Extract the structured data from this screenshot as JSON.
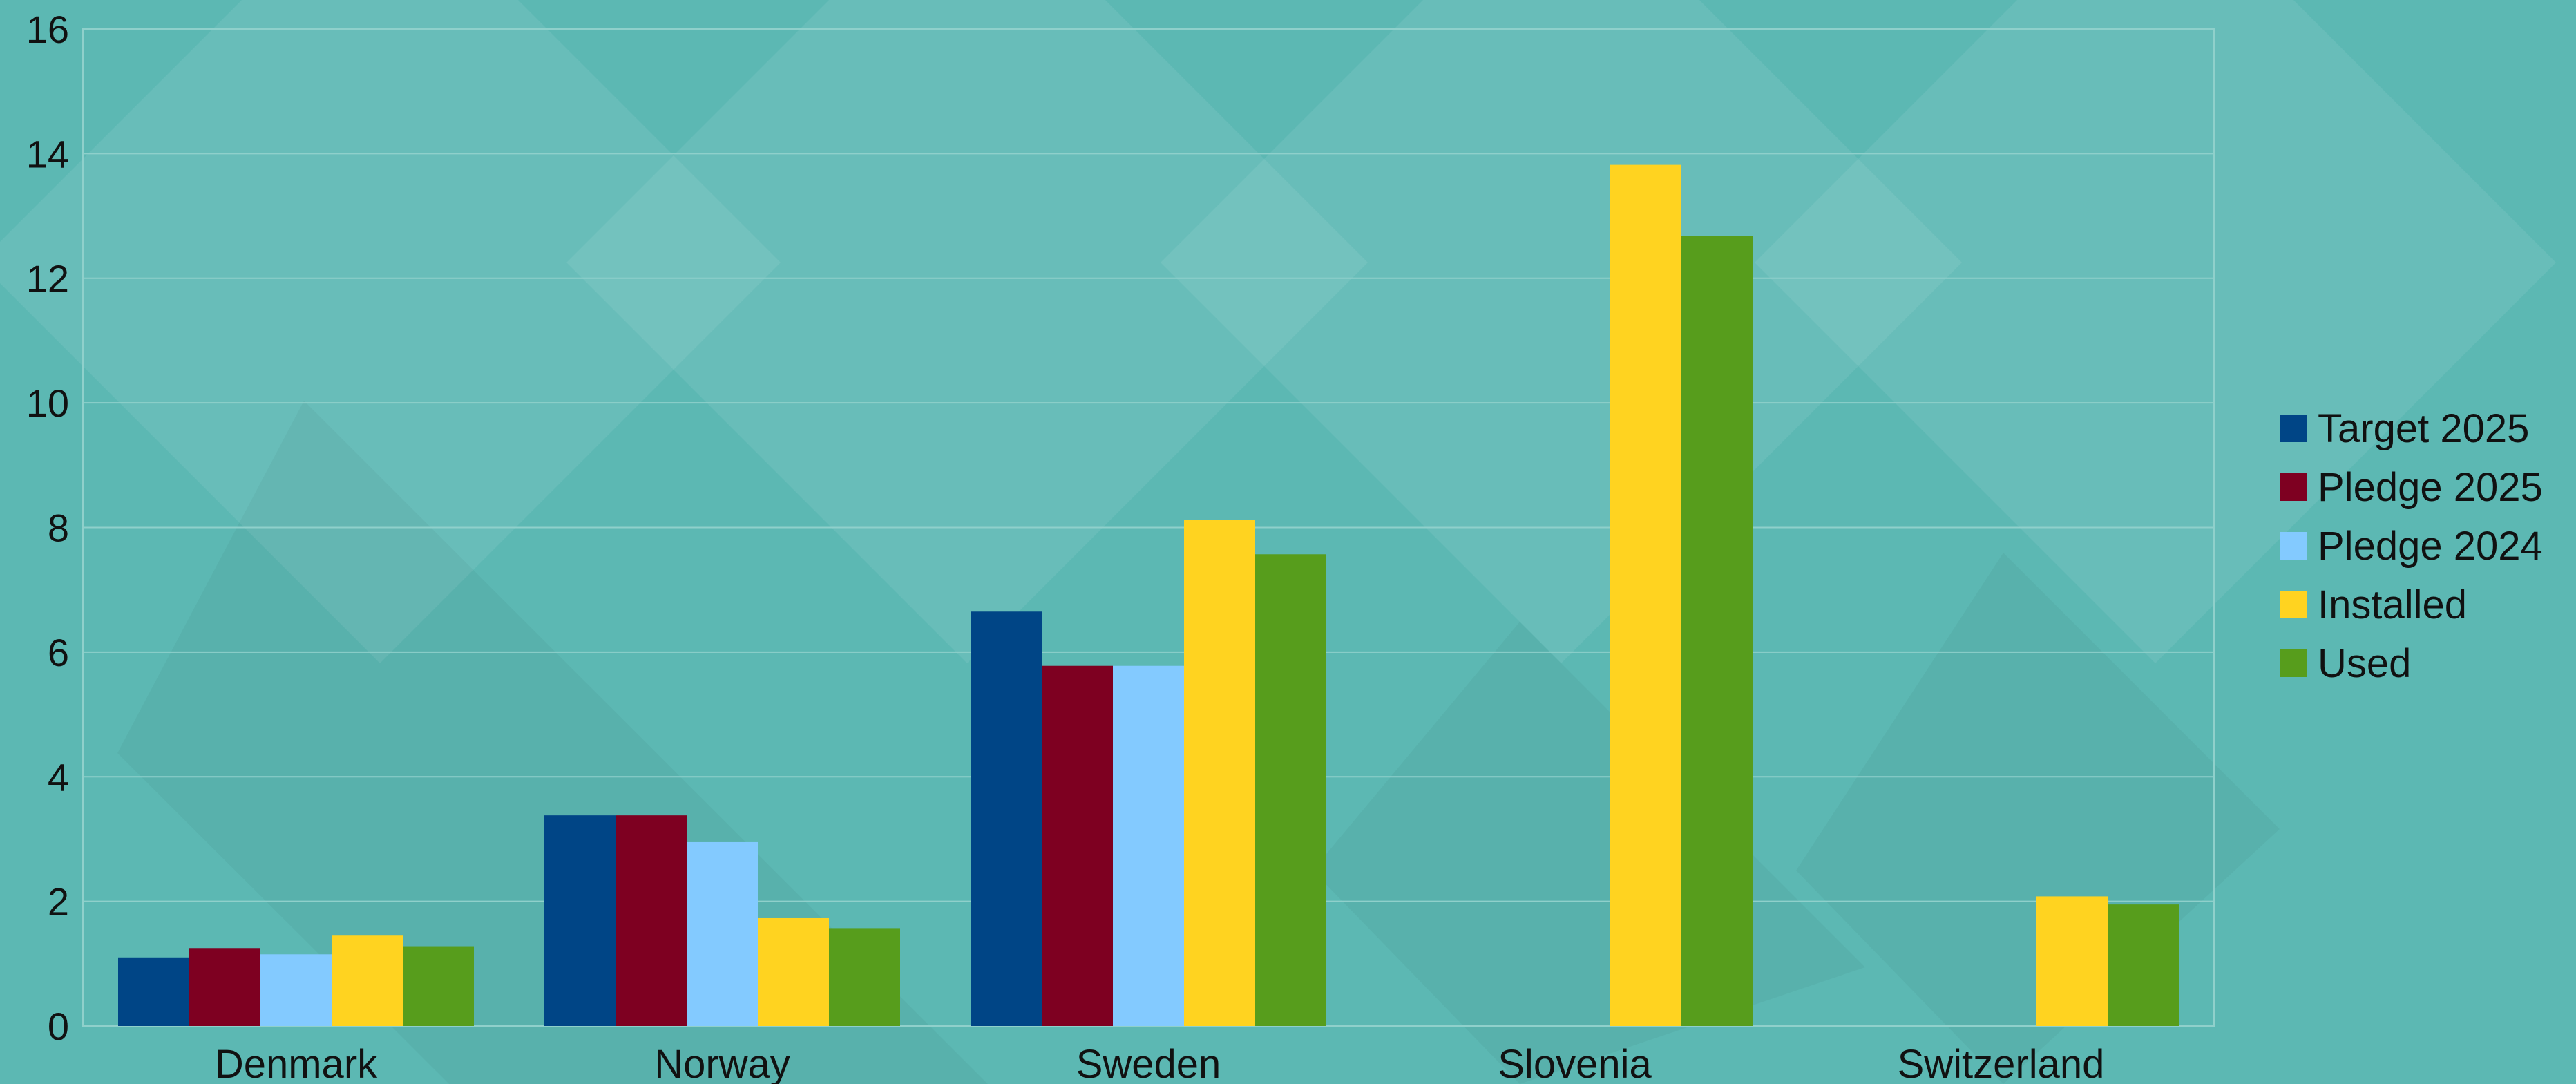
{
  "chart_data": {
    "type": "bar",
    "title": "",
    "xlabel": "",
    "ylabel": "",
    "ylim": [
      0,
      16
    ],
    "yticks": [
      0,
      2,
      4,
      6,
      8,
      10,
      12,
      14,
      16
    ],
    "grid": true,
    "legend_position": "right",
    "categories": [
      "Denmark",
      "Norway",
      "Sweden",
      "Slovenia",
      "Switzerland"
    ],
    "series": [
      {
        "name": "Target 2025",
        "color": "#004586",
        "values": [
          1.1,
          3.38,
          6.65,
          0,
          0
        ]
      },
      {
        "name": "Pledge 2025",
        "color": "#7e0021",
        "values": [
          1.25,
          3.38,
          5.78,
          0,
          0
        ]
      },
      {
        "name": "Pledge 2024",
        "color": "#83caff",
        "values": [
          1.15,
          2.95,
          5.78,
          0,
          0
        ]
      },
      {
        "name": "Installed",
        "color": "#ffd320",
        "values": [
          1.45,
          1.73,
          8.12,
          13.82,
          2.08
        ]
      },
      {
        "name": "Used",
        "color": "#579d1c",
        "values": [
          1.28,
          1.57,
          7.57,
          12.68,
          1.95
        ]
      }
    ]
  }
}
